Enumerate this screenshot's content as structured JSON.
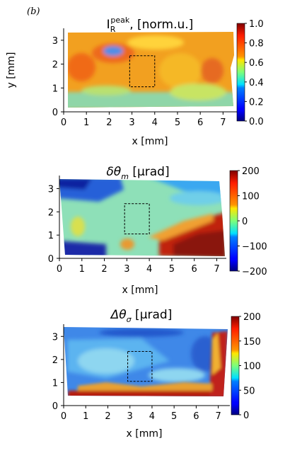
{
  "figure": {
    "panel_label": "(b)"
  },
  "chart_data": [
    {
      "type": "heatmap",
      "title": "I_R^peak, [norm.u.]",
      "title_parts": {
        "symbol": "I",
        "sub": "R",
        "sup": "peak",
        "rest": ", [norm.u.]"
      },
      "xlabel": "x [mm]",
      "ylabel": "y [mm]",
      "xlim": [
        0,
        7.3
      ],
      "ylim": [
        0,
        3.5
      ],
      "xticks": [
        "0",
        "1",
        "2",
        "3",
        "4",
        "5",
        "6",
        "7"
      ],
      "yticks": [
        "0",
        "1",
        "2",
        "3"
      ],
      "colorbar": {
        "min": 0.0,
        "max": 1.0,
        "ticks": [
          "0.0",
          "0.2",
          "0.4",
          "0.6",
          "0.8",
          "1.0"
        ],
        "colormap": "jet"
      },
      "roi": {
        "x": [
          2.9,
          4.0
        ],
        "y": [
          1.05,
          2.35
        ]
      },
      "description_values": {
        "typical": 0.75,
        "lower_edge": 0.4,
        "left_blob": 0.35
      }
    },
    {
      "type": "heatmap",
      "title": "δθ_m [μrad]",
      "title_parts": {
        "symbol": "δθ",
        "sub": "m",
        "rest": " [μrad]"
      },
      "xlabel": "x [mm]",
      "ylabel": "",
      "xlim": [
        0,
        7.3
      ],
      "ylim": [
        0,
        3.5
      ],
      "xticks": [
        "0",
        "1",
        "2",
        "3",
        "4",
        "5",
        "6",
        "7"
      ],
      "yticks": [
        "0",
        "1",
        "2",
        "3"
      ],
      "colorbar": {
        "min": -200,
        "max": 200,
        "ticks": [
          "−200",
          "−100",
          "0",
          "100",
          "200"
        ],
        "colormap": "jet"
      },
      "roi": {
        "x": [
          2.9,
          4.0
        ],
        "y": [
          1.05,
          2.35
        ]
      },
      "description_values": {
        "typical": 0,
        "top_left": -150,
        "bottom_right": 200
      }
    },
    {
      "type": "heatmap",
      "title": "Δθ_σ [μrad]",
      "title_parts": {
        "symbol": "Δθ",
        "sub": "σ",
        "rest": " [μrad]"
      },
      "xlabel": "x [mm]",
      "ylabel": "",
      "xlim": [
        0,
        7.3
      ],
      "ylim": [
        0,
        3.5
      ],
      "xticks": [
        "0",
        "1",
        "2",
        "3",
        "4",
        "5",
        "6",
        "7"
      ],
      "yticks": [
        "0",
        "1",
        "2",
        "3"
      ],
      "colorbar": {
        "min": 0,
        "max": 200,
        "ticks": [
          "0",
          "50",
          "100",
          "150",
          "200"
        ],
        "colormap": "jet"
      },
      "roi": {
        "x": [
          2.9,
          4.0
        ],
        "y": [
          1.05,
          2.35
        ]
      },
      "description_values": {
        "typical": 40,
        "lower_edge": 200,
        "right_edge": 200
      }
    }
  ]
}
